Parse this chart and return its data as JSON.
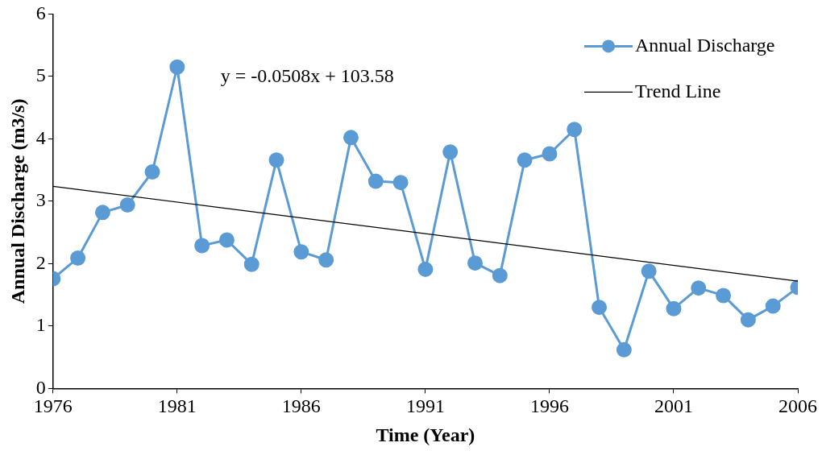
{
  "chart_data": {
    "type": "line",
    "xlabel": "Time (Year)",
    "ylabel": "Annual Discharge (m3/s)",
    "xlim": [
      1976,
      2006
    ],
    "xticks": [
      1976,
      1981,
      1986,
      1991,
      1996,
      2001,
      2006
    ],
    "ylim": [
      0,
      6
    ],
    "yticks": [
      0,
      1,
      2,
      3,
      4,
      5,
      6
    ],
    "grid": false,
    "legend": "top right",
    "annotations": [
      "y = -0.0508x + 103.58"
    ],
    "series": [
      {
        "name": "Annual Discharge",
        "color": "#5b9bd5",
        "marker": "circle",
        "x": [
          1976,
          1977,
          1978,
          1979,
          1980,
          1981,
          1982,
          1983,
          1984,
          1985,
          1986,
          1987,
          1988,
          1989,
          1990,
          1991,
          1992,
          1993,
          1994,
          1995,
          1996,
          1997,
          1998,
          1999,
          2000,
          2001,
          2002,
          2003,
          2004,
          2005,
          2006
        ],
        "values": [
          1.76,
          2.09,
          2.82,
          2.94,
          3.47,
          5.15,
          2.29,
          2.38,
          1.99,
          3.66,
          2.19,
          2.06,
          4.02,
          3.32,
          3.3,
          1.91,
          3.79,
          2.01,
          1.81,
          3.66,
          3.76,
          4.15,
          1.3,
          0.62,
          1.88,
          1.28,
          1.61,
          1.49,
          1.1,
          1.32,
          1.62
        ]
      },
      {
        "name": "Trend Line",
        "color": "#000000",
        "marker": "none",
        "x": [
          1976,
          2006
        ],
        "values": [
          3.24,
          1.72
        ]
      }
    ]
  }
}
